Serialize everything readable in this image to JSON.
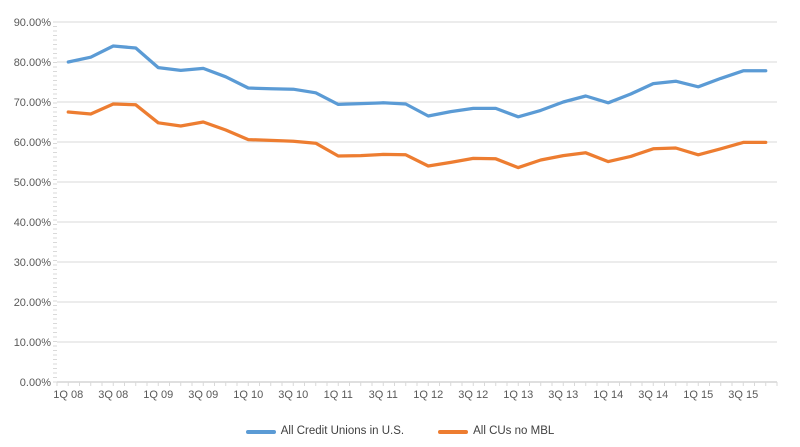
{
  "chart_data": {
    "type": "line",
    "title": "",
    "xlabel": "",
    "ylabel": "",
    "ylim": [
      0,
      90
    ],
    "y_major_step": 10,
    "y_tick_labels": [
      "0.00%",
      "10.00%",
      "20.00%",
      "30.00%",
      "40.00%",
      "50.00%",
      "60.00%",
      "70.00%",
      "80.00%",
      "90.00%"
    ],
    "x_tick_labels": [
      "1Q 08",
      "3Q 08",
      "1Q 09",
      "3Q 09",
      "1Q 10",
      "3Q 10",
      "1Q 11",
      "3Q 11",
      "1Q 12",
      "3Q 12",
      "1Q 13",
      "3Q 13",
      "1Q 14",
      "3Q 14",
      "1Q 15",
      "3Q 15"
    ],
    "points_per_label": 2,
    "num_points": 32,
    "grid": "horizontal",
    "legend_position": "bottom",
    "series": [
      {
        "name": "All Credit Unions in U.S.",
        "color": "#5B9BD5",
        "values": [
          80.0,
          81.2,
          84.0,
          83.5,
          78.6,
          77.9,
          78.4,
          76.3,
          73.5,
          73.3,
          73.2,
          72.3,
          69.4,
          69.6,
          69.8,
          69.5,
          66.5,
          67.6,
          68.4,
          68.4,
          66.3,
          67.9,
          70.0,
          71.5,
          69.8,
          72.0,
          74.6,
          75.2,
          73.8,
          75.9,
          77.8,
          77.8
        ]
      },
      {
        "name": "All CUs no MBL",
        "color": "#ED7D31",
        "values": [
          67.5,
          67.0,
          69.5,
          69.3,
          64.8,
          64.0,
          65.0,
          63.0,
          60.6,
          60.4,
          60.2,
          59.7,
          56.5,
          56.6,
          56.9,
          56.8,
          54.0,
          54.9,
          55.9,
          55.8,
          53.6,
          55.5,
          56.6,
          57.3,
          55.1,
          56.4,
          58.3,
          58.5,
          56.8,
          58.3,
          59.9,
          59.9
        ]
      }
    ]
  },
  "style": {
    "gridline_color": "#D9D9D9",
    "axis_line_color": "#BFBFBF",
    "tick_color": "#D9D9D9",
    "label_color": "#595959",
    "legend_text_color": "#404040",
    "background": "#FFFFFF"
  }
}
